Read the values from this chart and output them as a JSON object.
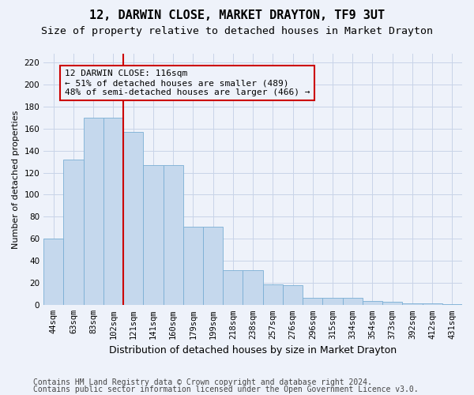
{
  "title": "12, DARWIN CLOSE, MARKET DRAYTON, TF9 3UT",
  "subtitle": "Size of property relative to detached houses in Market Drayton",
  "xlabel": "Distribution of detached houses by size in Market Drayton",
  "ylabel": "Number of detached properties",
  "categories": [
    "44sqm",
    "63sqm",
    "83sqm",
    "102sqm",
    "121sqm",
    "141sqm",
    "160sqm",
    "179sqm",
    "199sqm",
    "218sqm",
    "238sqm",
    "257sqm",
    "276sqm",
    "296sqm",
    "315sqm",
    "334sqm",
    "354sqm",
    "373sqm",
    "392sqm",
    "412sqm",
    "431sqm"
  ],
  "values": [
    60,
    132,
    170,
    170,
    157,
    127,
    127,
    71,
    71,
    32,
    32,
    19,
    18,
    7,
    7,
    7,
    4,
    3,
    2,
    2,
    1
  ],
  "bar_color": "#c5d8ed",
  "bar_edge_color": "#7aafd4",
  "grid_color": "#c8d4e8",
  "background_color": "#eef2fa",
  "annotation_box_color": "#cc0000",
  "property_line_color": "#cc0000",
  "property_line_x": 3.5,
  "annotation_text": "12 DARWIN CLOSE: 116sqm\n← 51% of detached houses are smaller (489)\n48% of semi-detached houses are larger (466) →",
  "annotation_fontsize": 8.0,
  "ylim": [
    0,
    228
  ],
  "yticks": [
    0,
    20,
    40,
    60,
    80,
    100,
    120,
    140,
    160,
    180,
    200,
    220
  ],
  "footer1": "Contains HM Land Registry data © Crown copyright and database right 2024.",
  "footer2": "Contains public sector information licensed under the Open Government Licence v3.0.",
  "title_fontsize": 11,
  "subtitle_fontsize": 9.5,
  "xlabel_fontsize": 9,
  "ylabel_fontsize": 8,
  "tick_fontsize": 7.5,
  "footer_fontsize": 7
}
